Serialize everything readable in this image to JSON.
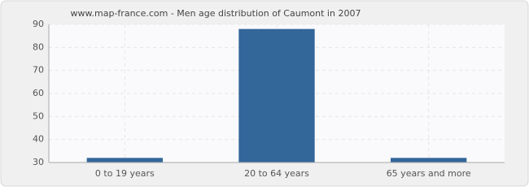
{
  "chart_data": {
    "type": "bar",
    "title": "www.map-france.com - Men age distribution of Caumont in 2007",
    "categories": [
      "0 to 19 years",
      "20 to 64 years",
      "65 years and more"
    ],
    "values": [
      32,
      88,
      32
    ],
    "color": "#336699",
    "ylim": [
      30,
      90
    ],
    "yticks": [
      30,
      40,
      50,
      60,
      70,
      80,
      90
    ],
    "grid": true
  }
}
